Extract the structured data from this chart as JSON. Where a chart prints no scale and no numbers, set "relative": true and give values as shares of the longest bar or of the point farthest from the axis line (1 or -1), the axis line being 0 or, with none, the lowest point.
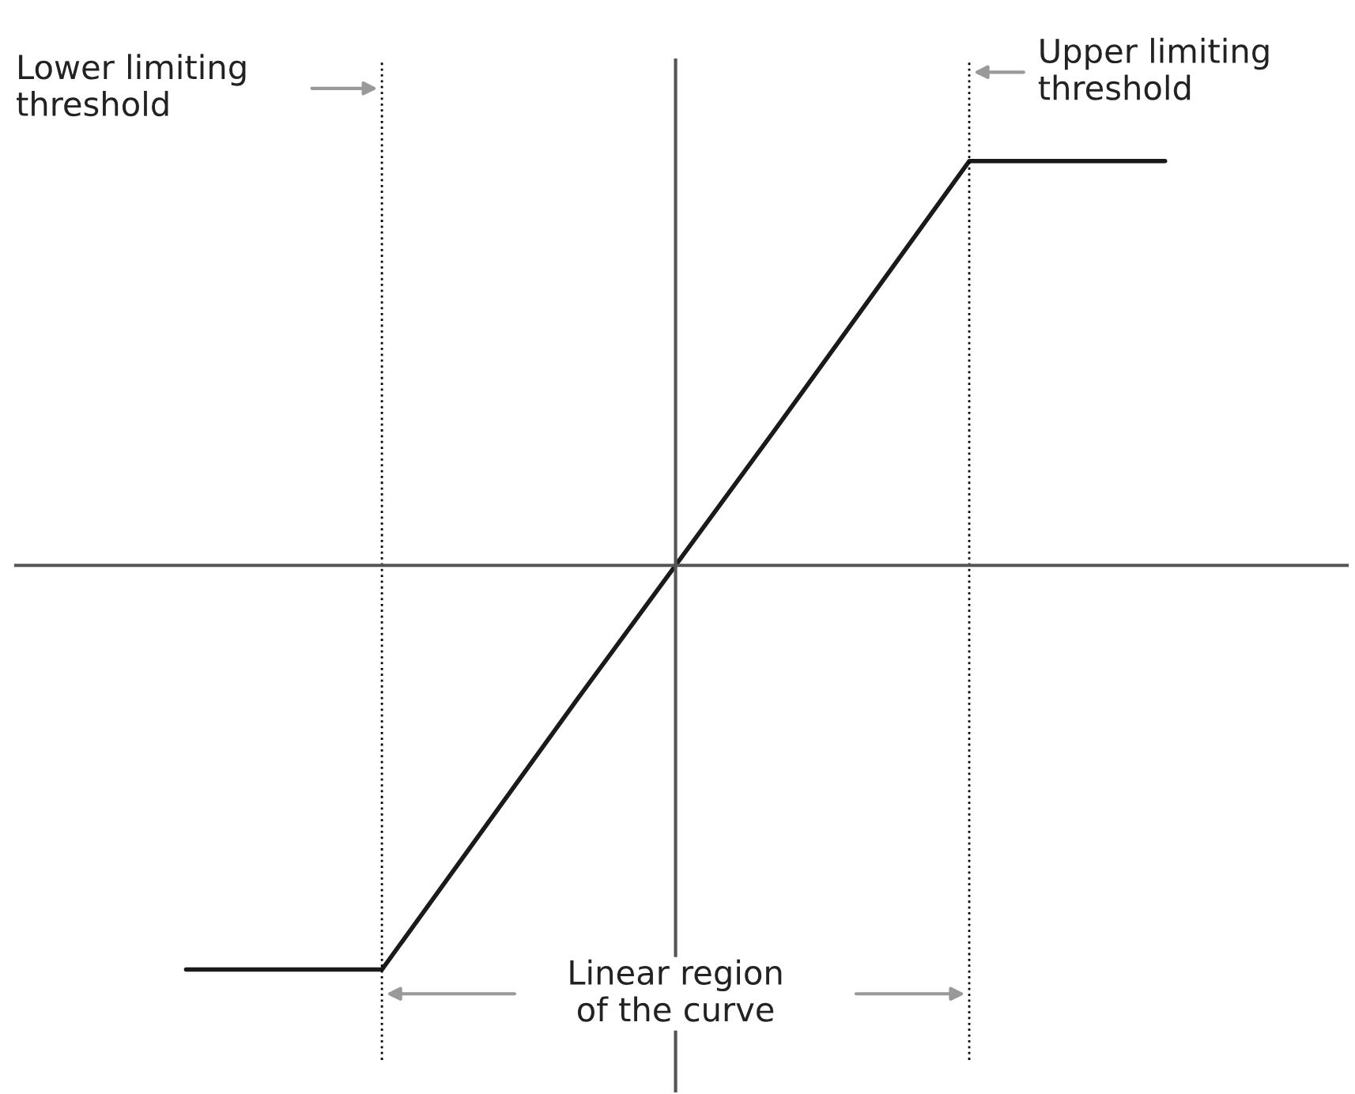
{
  "chart_data": {
    "type": "line",
    "relative": true,
    "categories": [
      null,
      null,
      null,
      null,
      null,
      null
    ],
    "series": [
      {
        "color": "#1a1a1a",
        "values": [
          -1,
          -1,
          -0.33,
          0.33,
          1,
          1
        ]
      }
    ],
    "annotations": [
      "Lower limiting\nthreshold",
      "Upper limiting\nthreshold",
      "Linear region\nof the curve"
    ],
    "marker": "none",
    "line_style": "solid"
  }
}
